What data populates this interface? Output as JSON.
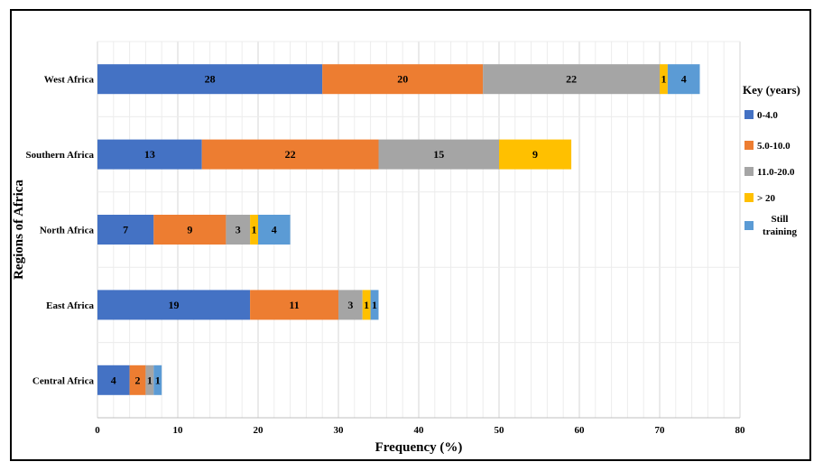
{
  "chart_data": {
    "type": "bar",
    "orientation": "horizontal",
    "stacked": true,
    "categories": [
      "West Africa",
      "Southern Africa",
      "North Africa",
      "East Africa",
      "Central Africa"
    ],
    "series": [
      {
        "name": "0-4.0",
        "color": "#4472C4",
        "values": [
          28,
          13,
          7,
          19,
          4
        ]
      },
      {
        "name": "5.0-10.0",
        "color": "#ED7D31",
        "values": [
          20,
          22,
          9,
          11,
          2
        ]
      },
      {
        "name": "11.0-20.0",
        "color": "#A5A5A5",
        "values": [
          22,
          15,
          3,
          3,
          1
        ]
      },
      {
        "name": "> 20",
        "color": "#FFC000",
        "values": [
          1,
          9,
          1,
          1,
          0
        ]
      },
      {
        "name": "Still training",
        "color": "#5B9BD5",
        "values": [
          4,
          0,
          4,
          1,
          1
        ]
      }
    ],
    "xlabel": "Frequency (%)",
    "ylabel": "Regions of  Africa",
    "xlim": [
      0,
      80
    ],
    "xticks": [
      0,
      10,
      20,
      30,
      40,
      50,
      60,
      70,
      80
    ],
    "grid": true,
    "legend_title": "Key (years)",
    "legend_position": "right"
  }
}
